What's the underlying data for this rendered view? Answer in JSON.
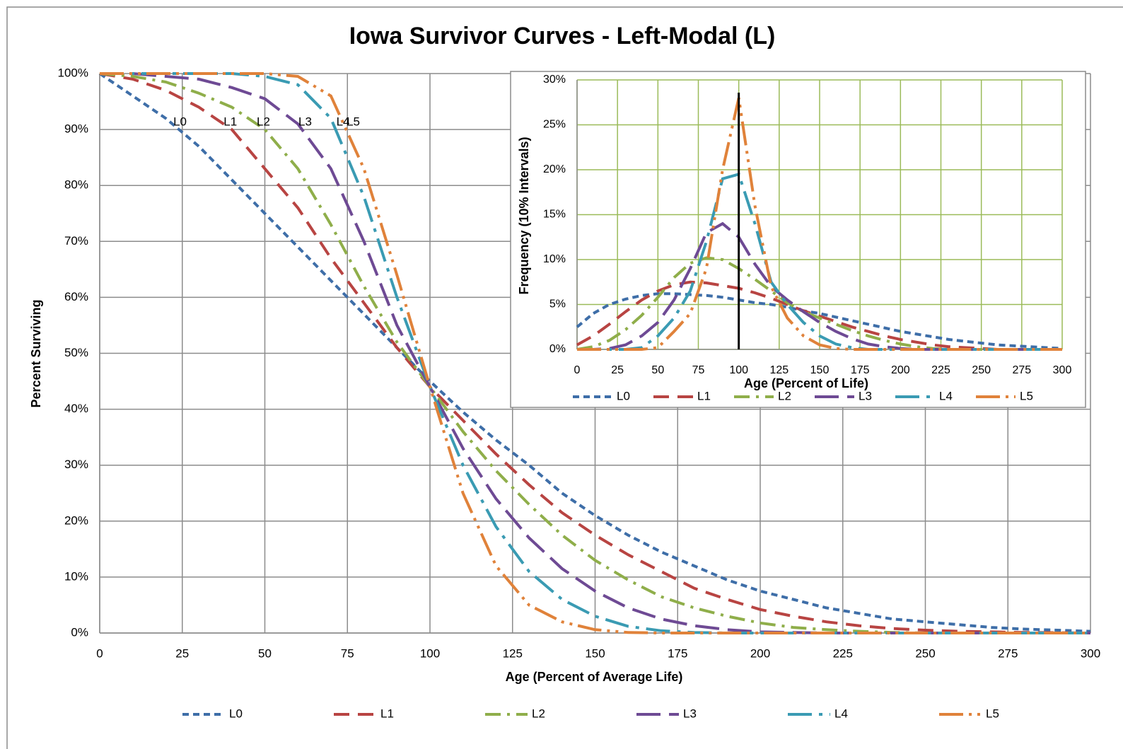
{
  "chart_data": [
    {
      "type": "line",
      "title": "Iowa Survivor Curves - Left-Modal (L)",
      "xlabel": "Age (Percent of Average Life)",
      "ylabel": "Percent Surviving",
      "x": [
        0,
        10,
        20,
        30,
        40,
        50,
        60,
        70,
        80,
        90,
        100,
        110,
        120,
        130,
        140,
        150,
        160,
        170,
        180,
        190,
        200,
        210,
        220,
        230,
        240,
        250,
        260,
        270,
        280,
        290,
        300
      ],
      "series": [
        {
          "name": "L0",
          "color": "#3e6ea8",
          "dash": "short-dash",
          "values": [
            100,
            96,
            92,
            87,
            81,
            75,
            69,
            63,
            57,
            51,
            45,
            39.5,
            34.5,
            30,
            25,
            21,
            17.5,
            14.5,
            12,
            9.5,
            7.5,
            6,
            4.5,
            3.5,
            2.5,
            2,
            1.5,
            1,
            0.7,
            0.5,
            0.3
          ]
        },
        {
          "name": "L1",
          "color": "#b84442",
          "dash": "dash",
          "values": [
            100,
            99,
            97,
            94,
            90,
            83,
            76,
            67,
            59,
            51,
            44,
            38,
            32,
            26.5,
            21.5,
            17.5,
            14,
            11,
            8,
            6,
            4.2,
            3,
            2,
            1.3,
            0.8,
            0.5,
            0.3,
            0.2,
            0.1,
            0.05,
            0
          ]
        },
        {
          "name": "L2",
          "color": "#8fae4a",
          "dash": "dash-dot",
          "values": [
            100,
            99.5,
            98.5,
            96.5,
            94,
            90,
            83,
            73,
            62,
            52,
            44,
            36,
            29,
            23,
            17.5,
            13,
            9.5,
            6.5,
            4.5,
            3,
            1.8,
            1,
            0.6,
            0.3,
            0.1,
            0,
            0,
            0,
            0,
            0,
            0
          ]
        },
        {
          "name": "L3",
          "color": "#6e4a94",
          "dash": "long-dash",
          "values": [
            100,
            100,
            99.5,
            99,
            97.5,
            95.5,
            91,
            83,
            70,
            55,
            44,
            33,
            24,
            17,
            11.5,
            7.5,
            4.5,
            2.5,
            1.3,
            0.6,
            0.2,
            0.1,
            0,
            0,
            0,
            0,
            0,
            0,
            0,
            0,
            0
          ]
        },
        {
          "name": "L4",
          "color": "#3a9bb3",
          "dash": "long-dash-dot",
          "values": [
            100,
            100,
            100,
            100,
            100,
            99.5,
            98,
            92,
            78,
            60,
            44,
            30,
            19,
            11,
            6,
            3,
            1.2,
            0.4,
            0.1,
            0,
            0,
            0,
            0,
            0,
            0,
            0,
            0,
            0,
            0,
            0,
            0
          ]
        },
        {
          "name": "L5",
          "color": "#e0823a",
          "dash": "long-dash-dot-dot",
          "values": [
            100,
            100,
            100,
            100,
            100,
            100,
            99.5,
            96,
            83,
            64,
            44,
            25,
            12,
            5,
            2,
            0.6,
            0.1,
            0,
            0,
            0,
            0,
            0,
            0,
            0,
            0,
            0,
            0,
            0,
            0,
            0,
            0
          ]
        }
      ],
      "annotations": [
        "L0",
        "L1",
        "L2",
        "L3",
        "L4",
        "L5"
      ],
      "xlim": [
        0,
        300
      ],
      "xticks": [
        0,
        25,
        50,
        75,
        100,
        125,
        150,
        175,
        200,
        225,
        250,
        275,
        300
      ],
      "ylim": [
        0,
        100
      ],
      "yticks": [
        {
          "value": 0,
          "label": "0%"
        },
        {
          "value": 10,
          "label": "10%"
        },
        {
          "value": 20,
          "label": "20%"
        },
        {
          "value": 30,
          "label": "30%"
        },
        {
          "value": 40,
          "label": "40%"
        },
        {
          "value": 50,
          "label": "50%"
        },
        {
          "value": 60,
          "label": "60%"
        },
        {
          "value": 70,
          "label": "70%"
        },
        {
          "value": 80,
          "label": "80%"
        },
        {
          "value": 90,
          "label": "90%"
        },
        {
          "value": 100,
          "label": "100%"
        }
      ],
      "grid": true,
      "grid_color": "#8c8c8c",
      "legend": "bottom"
    },
    {
      "type": "line",
      "xlabel": "Age (Percent of Life)",
      "ylabel": "Frequency (10% Intervals)",
      "x": [
        0,
        10,
        20,
        30,
        40,
        50,
        60,
        70,
        80,
        90,
        100,
        110,
        120,
        130,
        140,
        150,
        160,
        170,
        180,
        190,
        200,
        210,
        220,
        230,
        240,
        250,
        260,
        270,
        280,
        290,
        300
      ],
      "series": [
        {
          "name": "L0",
          "color": "#3e6ea8",
          "dash": "short-dash",
          "values": [
            2.5,
            4,
            5,
            5.6,
            6,
            6.2,
            6.2,
            6.1,
            6,
            5.8,
            5.5,
            5.2,
            5,
            4.7,
            4.3,
            4,
            3.6,
            3.2,
            2.8,
            2.4,
            2,
            1.7,
            1.4,
            1.1,
            0.9,
            0.7,
            0.5,
            0.4,
            0.3,
            0.2,
            0.1
          ]
        },
        {
          "name": "L1",
          "color": "#b84442",
          "dash": "dash",
          "values": [
            0.5,
            1.5,
            2.8,
            4.2,
            5.5,
            6.5,
            7.2,
            7.5,
            7.4,
            7.1,
            6.8,
            6.3,
            5.7,
            5,
            4.3,
            3.7,
            3.1,
            2.5,
            2,
            1.5,
            1.1,
            0.8,
            0.5,
            0.3,
            0.2,
            0.1,
            0,
            0,
            0,
            0,
            0
          ]
        },
        {
          "name": "L2",
          "color": "#8fae4a",
          "dash": "dash-dot",
          "values": [
            0,
            0.3,
            1,
            2.2,
            3.8,
            5.8,
            8,
            9.6,
            10.2,
            10,
            9,
            7.8,
            6.5,
            5.2,
            4.2,
            3.5,
            2.8,
            2.1,
            1.5,
            1,
            0.6,
            0.3,
            0.1,
            0,
            0,
            0,
            0,
            0,
            0,
            0,
            0
          ]
        },
        {
          "name": "L3",
          "color": "#6e4a94",
          "dash": "long-dash",
          "values": [
            0,
            0,
            0.1,
            0.5,
            1.5,
            3,
            5.5,
            9,
            13,
            14,
            12.5,
            9.5,
            7,
            5.5,
            4.2,
            3,
            2,
            1.2,
            0.6,
            0.3,
            0.1,
            0,
            0,
            0,
            0,
            0,
            0,
            0,
            0,
            0,
            0
          ]
        },
        {
          "name": "L4",
          "color": "#3a9bb3",
          "dash": "long-dash-dot",
          "values": [
            0,
            0,
            0,
            0,
            0.2,
            1.5,
            3.5,
            6.5,
            12,
            19,
            19.5,
            14,
            7.5,
            5,
            3,
            1.5,
            0.6,
            0.2,
            0,
            0,
            0,
            0,
            0,
            0,
            0,
            0,
            0,
            0,
            0,
            0,
            0
          ]
        },
        {
          "name": "L5",
          "color": "#e0823a",
          "dash": "long-dash-dot-dot",
          "values": [
            0,
            0,
            0,
            0,
            0,
            0.2,
            2,
            4,
            9,
            20,
            28,
            16,
            7,
            3.5,
            1.5,
            0.5,
            0.1,
            0,
            0,
            0,
            0,
            0,
            0,
            0,
            0,
            0,
            0,
            0,
            0,
            0,
            0
          ]
        }
      ],
      "vline": 100,
      "xlim": [
        0,
        300
      ],
      "xticks": [
        0,
        25,
        50,
        75,
        100,
        125,
        150,
        175,
        200,
        225,
        250,
        275,
        300
      ],
      "ylim": [
        0,
        30
      ],
      "yticks": [
        {
          "value": 0,
          "label": "0%"
        },
        {
          "value": 5,
          "label": "5%"
        },
        {
          "value": 10,
          "label": "10%"
        },
        {
          "value": 15,
          "label": "15%"
        },
        {
          "value": 20,
          "label": "20%"
        },
        {
          "value": 25,
          "label": "25%"
        },
        {
          "value": 30,
          "label": "30%"
        }
      ],
      "grid": true,
      "grid_color": "#9bbb59",
      "legend": "bottom"
    }
  ]
}
